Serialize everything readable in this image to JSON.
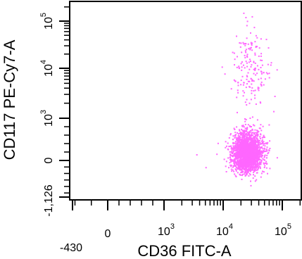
{
  "chart_data": {
    "type": "scatter",
    "title": "",
    "xlabel": "CD36 FITC-A",
    "ylabel": "CD117 PE-Cy7-A",
    "x_scale": "biexponential",
    "y_scale": "biexponential",
    "xlim": [
      -430,
      200000
    ],
    "ylim": [
      -1126,
      200000
    ],
    "x_ticks": [
      {
        "value": -430,
        "label": "-430"
      },
      {
        "value": 0,
        "label": "0"
      },
      {
        "value": 1000,
        "label": "10",
        "exp": "3"
      },
      {
        "value": 10000,
        "label": "10",
        "exp": "4"
      },
      {
        "value": 100000,
        "label": "10",
        "exp": "5"
      }
    ],
    "y_ticks": [
      {
        "value": -1126,
        "label": "-1,126"
      },
      {
        "value": 0,
        "label": "0"
      },
      {
        "value": 1000,
        "label": "10",
        "exp": "3"
      },
      {
        "value": 10000,
        "label": "10",
        "exp": "4"
      },
      {
        "value": 100000,
        "label": "10",
        "exp": "5"
      }
    ],
    "grid": false,
    "point_color": "#ff66ff",
    "series": [
      {
        "clusters": [
          {
            "x_median": 25000,
            "y_median": 180,
            "x_spread_decades": 0.13,
            "y_spread": 250,
            "count": 2200
          },
          {
            "x_median": 28000,
            "y_median": 10000,
            "x_spread_decades": 0.16,
            "y_spread_decades": 0.45,
            "count": 170
          }
        ],
        "sample_points": [
          {
            "x": 3500,
            "y": 150
          },
          {
            "x": 5000,
            "y": -200
          },
          {
            "x": 8000,
            "y": 420
          },
          {
            "x": 60000,
            "y": 300
          },
          {
            "x": 80000,
            "y": 80
          },
          {
            "x": 70000,
            "y": 1400
          },
          {
            "x": 30000,
            "y": 25000
          },
          {
            "x": 45000,
            "y": 12000
          },
          {
            "x": 35000,
            "y": 30000
          },
          {
            "x": 15000,
            "y": 6000
          },
          {
            "x": 55000,
            "y": 8000
          }
        ]
      }
    ]
  }
}
